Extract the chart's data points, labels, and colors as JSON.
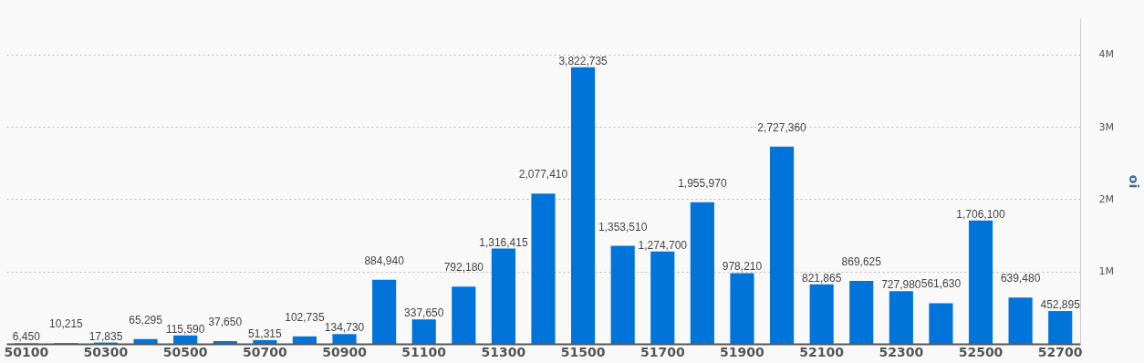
{
  "chart_data": {
    "type": "bar",
    "ylabel": "oi",
    "categories": [
      "50100",
      null,
      "50300",
      null,
      "50500",
      null,
      "50700",
      null,
      "50900",
      null,
      "51100",
      null,
      "51300",
      null,
      "51500",
      null,
      "51700",
      null,
      "51900",
      null,
      "52100",
      null,
      "52300",
      null,
      "52500",
      null,
      "52700"
    ],
    "values": [
      6450,
      10215,
      17835,
      65295,
      115590,
      37650,
      51315,
      102735,
      134730,
      884940,
      337650,
      792180,
      1316415,
      2077410,
      3822735,
      1353510,
      1274700,
      1955970,
      978210,
      2727360,
      821865,
      869625,
      727980,
      561630,
      1706100,
      639480,
      452895
    ],
    "color": "#0074d9",
    "ylim": [
      0,
      4500000
    ],
    "yticks": [
      {
        "value": 1000000,
        "label": "1M"
      },
      {
        "value": 2000000,
        "label": "2M"
      },
      {
        "value": 3000000,
        "label": "3M"
      },
      {
        "value": 4000000,
        "label": "4M"
      }
    ],
    "value_labels": [
      "6,450",
      "10,215",
      "17,835",
      "65,295",
      "115,590",
      "37,650",
      "51,315",
      "102,735",
      "134,730",
      "884,940",
      "337,650",
      "792,180",
      "1,316,415",
      "2,077,410",
      "3,822,735",
      "1,353,510",
      "1,274,700",
      "1,955,970",
      "978,210",
      "2,727,360",
      "821,865",
      "869,625",
      "727,980",
      "561,630",
      "1,706,100",
      "639,480",
      "452,895"
    ],
    "grid": "y"
  }
}
